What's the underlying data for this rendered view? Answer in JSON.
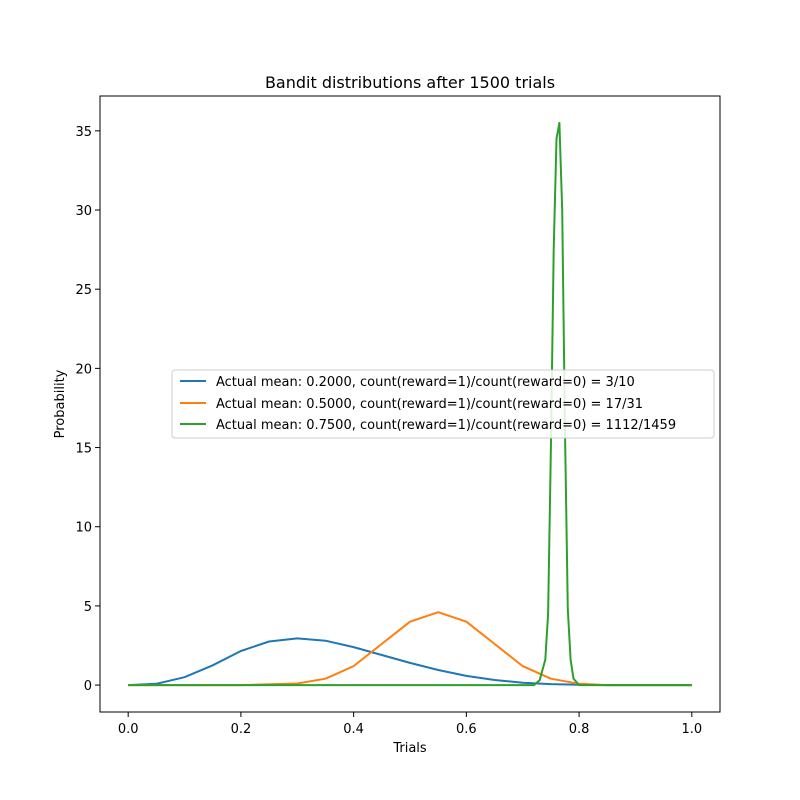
{
  "chart_data": {
    "type": "line",
    "title": "Bandit distributions after 1500 trials",
    "xlabel": "Trials",
    "ylabel": "Probability",
    "xlim": [
      -0.05,
      1.05
    ],
    "ylim": [
      -1.7,
      37.2
    ],
    "xticks": [
      "0.0",
      "0.2",
      "0.4",
      "0.6",
      "0.8",
      "1.0"
    ],
    "yticks": [
      "0",
      "5",
      "10",
      "15",
      "20",
      "25",
      "30",
      "35"
    ],
    "grid": false,
    "legend_position": "center-right",
    "series": [
      {
        "name": "Actual mean: 0.2000, count(reward=1)/count(reward=0) = 3/10",
        "color": "#1f77b4",
        "x": [
          0.0,
          0.05,
          0.1,
          0.15,
          0.2,
          0.25,
          0.3,
          0.35,
          0.4,
          0.45,
          0.5,
          0.55,
          0.6,
          0.65,
          0.7,
          0.75,
          0.8,
          0.85,
          0.9,
          0.95,
          1.0
        ],
        "y": [
          0.0,
          0.08,
          0.5,
          1.25,
          2.15,
          2.75,
          2.95,
          2.8,
          2.4,
          1.9,
          1.4,
          0.95,
          0.58,
          0.32,
          0.15,
          0.06,
          0.02,
          0.0,
          0.0,
          0.0,
          0.0
        ]
      },
      {
        "name": "Actual mean: 0.5000, count(reward=1)/count(reward=0) = 17/31",
        "color": "#ff7f0e",
        "x": [
          0.0,
          0.2,
          0.3,
          0.35,
          0.4,
          0.45,
          0.5,
          0.55,
          0.6,
          0.65,
          0.7,
          0.75,
          0.8,
          0.85,
          1.0
        ],
        "y": [
          0.0,
          0.0,
          0.1,
          0.4,
          1.2,
          2.6,
          4.0,
          4.6,
          4.0,
          2.6,
          1.2,
          0.4,
          0.08,
          0.0,
          0.0
        ]
      },
      {
        "name": "Actual mean: 0.7500, count(reward=1)/count(reward=0) = 1112/1459",
        "color": "#2ca02c",
        "x": [
          0.0,
          0.72,
          0.73,
          0.74,
          0.745,
          0.75,
          0.755,
          0.76,
          0.765,
          0.77,
          0.775,
          0.78,
          0.785,
          0.79,
          0.8,
          1.0
        ],
        "y": [
          0.0,
          0.0,
          0.3,
          1.6,
          4.5,
          15.0,
          27.5,
          34.5,
          35.5,
          30.0,
          16.0,
          4.8,
          1.6,
          0.4,
          0.0,
          0.0
        ]
      }
    ]
  }
}
